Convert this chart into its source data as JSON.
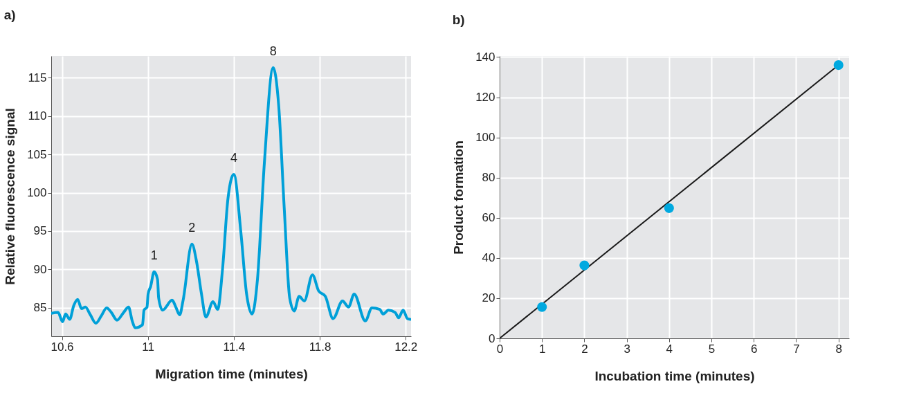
{
  "chart_data": [
    {
      "type": "line",
      "title": "a)",
      "xlabel": "Migration time (minutes)",
      "ylabel": "Relative fluorescence signal",
      "xlim": [
        10.55,
        12.225
      ],
      "xticks": [
        10.6,
        11,
        11.4,
        11.8,
        12.2
      ],
      "ylim": [
        81.3,
        117.8
      ],
      "yticks": [
        85,
        90,
        95,
        100,
        105,
        110,
        115
      ],
      "grid": true,
      "marker": "none",
      "line_style": "solid",
      "series": [
        {
          "color": "#00a0d8",
          "x": [
            10.551,
            10.582,
            10.603,
            10.617,
            10.636,
            10.655,
            10.673,
            10.691,
            10.709,
            10.732,
            10.758,
            10.784,
            10.808,
            10.83,
            10.856,
            10.887,
            10.91,
            10.927,
            10.941,
            10.975,
            10.982,
            10.996,
            11.001,
            11.013,
            11.029,
            11.045,
            11.05,
            11.068,
            11.113,
            11.13,
            11.148,
            11.164,
            11.205,
            11.226,
            11.249,
            11.27,
            11.303,
            11.325,
            11.347,
            11.373,
            11.4,
            11.433,
            11.459,
            11.485,
            11.51,
            11.542,
            11.583,
            11.609,
            11.635,
            11.66,
            11.681,
            11.704,
            11.728,
            11.766,
            11.795,
            11.826,
            11.862,
            11.906,
            11.934,
            11.96,
            12.012,
            12.043,
            12.079,
            12.095,
            12.12,
            12.151,
            12.167,
            12.188,
            12.208,
            12.221
          ],
          "values": [
            84.3,
            84.4,
            83.2,
            84.2,
            83.5,
            85.3,
            86.1,
            84.9,
            85.1,
            84.1,
            83.0,
            84.0,
            85.0,
            84.4,
            83.4,
            84.4,
            85.1,
            83.3,
            82.4,
            82.8,
            84.7,
            85.1,
            86.8,
            87.8,
            89.7,
            88.7,
            86.3,
            84.7,
            86.0,
            85.1,
            84.1,
            86.0,
            93.3,
            91.1,
            86.9,
            83.8,
            85.8,
            84.8,
            89.9,
            99.3,
            102.4,
            94.8,
            86.9,
            84.2,
            88.7,
            103.8,
            116.3,
            111.3,
            97.8,
            86.3,
            84.6,
            86.5,
            85.9,
            89.3,
            87.2,
            86.5,
            83.6,
            85.9,
            85.1,
            86.8,
            83.3,
            85.0,
            84.8,
            84.2,
            84.7,
            84.4,
            83.7,
            84.7,
            83.6,
            83.5
          ]
        }
      ],
      "annotations": [
        {
          "text": "1",
          "x": 11.029,
          "y": 89.7
        },
        {
          "text": "2",
          "x": 11.205,
          "y": 93.3
        },
        {
          "text": "4",
          "x": 11.4,
          "y": 102.4
        },
        {
          "text": "8",
          "x": 11.583,
          "y": 116.3
        }
      ]
    },
    {
      "type": "scatter",
      "title": "b)",
      "xlabel": "Incubation time (minutes)",
      "ylabel": "Product formation",
      "xlim": [
        0,
        8.25
      ],
      "xticks": [
        0,
        1,
        2,
        3,
        4,
        5,
        6,
        7,
        8
      ],
      "ylim": [
        0,
        140.5
      ],
      "yticks": [
        0,
        20,
        40,
        60,
        80,
        100,
        120,
        140
      ],
      "grid": true,
      "series": [
        {
          "type": "line",
          "color": "#1a1a1a",
          "x": [
            0,
            8
          ],
          "values": [
            0,
            136
          ]
        },
        {
          "type": "scatter",
          "marker": "circle",
          "color": "#00a9e0",
          "x": [
            1,
            2,
            4,
            8
          ],
          "values": [
            15.6,
            36.3,
            64.8,
            136
          ]
        }
      ]
    }
  ]
}
